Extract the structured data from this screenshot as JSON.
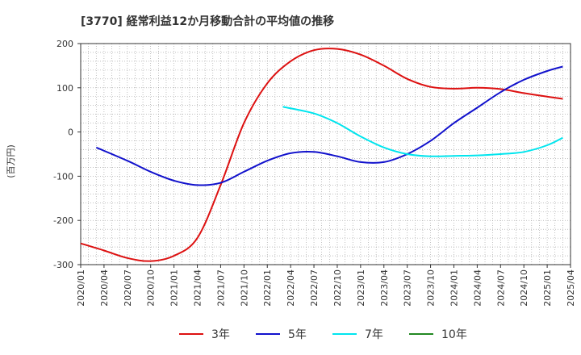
{
  "chart_data": {
    "type": "line",
    "title": "[3770]  経常利益12か月移動合計の平均値の推移",
    "ylabel": "(百万円)",
    "xlabel": "",
    "ylim": [
      -300,
      200
    ],
    "yticks": [
      200,
      100,
      0,
      -100,
      -200,
      -300
    ],
    "grid": true,
    "x_labels": [
      "2020/01",
      "2020/04",
      "2020/07",
      "2020/10",
      "2021/01",
      "2021/04",
      "2021/07",
      "2021/10",
      "2022/01",
      "2022/04",
      "2022/07",
      "2022/10",
      "2023/01",
      "2023/04",
      "2023/07",
      "2023/10",
      "2024/01",
      "2024/04",
      "2024/07",
      "2024/10",
      "2025/01",
      "2025/04"
    ],
    "legend_position": "bottom",
    "series": [
      {
        "name": "3年",
        "color": "#dd1111",
        "points": [
          [
            "2020/01",
            -252
          ],
          [
            "2020/04",
            -268
          ],
          [
            "2020/07",
            -285
          ],
          [
            "2020/10",
            -292
          ],
          [
            "2021/01",
            -280
          ],
          [
            "2021/04",
            -240
          ],
          [
            "2021/07",
            -120
          ],
          [
            "2021/10",
            20
          ],
          [
            "2022/01",
            110
          ],
          [
            "2022/04",
            160
          ],
          [
            "2022/07",
            185
          ],
          [
            "2022/10",
            188
          ],
          [
            "2023/01",
            175
          ],
          [
            "2023/04",
            150
          ],
          [
            "2023/07",
            120
          ],
          [
            "2023/10",
            102
          ],
          [
            "2024/01",
            98
          ],
          [
            "2024/04",
            100
          ],
          [
            "2024/07",
            97
          ],
          [
            "2024/10",
            88
          ],
          [
            "2025/01",
            80
          ],
          [
            "2025/03",
            75
          ]
        ]
      },
      {
        "name": "5年",
        "color": "#1111cc",
        "points": [
          [
            "2020/03",
            -35
          ],
          [
            "2020/07",
            -65
          ],
          [
            "2020/10",
            -90
          ],
          [
            "2021/01",
            -110
          ],
          [
            "2021/04",
            -120
          ],
          [
            "2021/07",
            -115
          ],
          [
            "2021/10",
            -90
          ],
          [
            "2022/01",
            -65
          ],
          [
            "2022/04",
            -48
          ],
          [
            "2022/07",
            -45
          ],
          [
            "2022/10",
            -55
          ],
          [
            "2023/01",
            -68
          ],
          [
            "2023/04",
            -68
          ],
          [
            "2023/07",
            -50
          ],
          [
            "2023/10",
            -20
          ],
          [
            "2024/01",
            20
          ],
          [
            "2024/04",
            55
          ],
          [
            "2024/07",
            90
          ],
          [
            "2024/10",
            118
          ],
          [
            "2025/01",
            138
          ],
          [
            "2025/03",
            148
          ]
        ]
      },
      {
        "name": "7年",
        "color": "#00e5ee",
        "points": [
          [
            "2022/03",
            57
          ],
          [
            "2022/07",
            42
          ],
          [
            "2022/10",
            20
          ],
          [
            "2023/01",
            -10
          ],
          [
            "2023/04",
            -35
          ],
          [
            "2023/07",
            -50
          ],
          [
            "2023/10",
            -55
          ],
          [
            "2024/01",
            -54
          ],
          [
            "2024/04",
            -53
          ],
          [
            "2024/07",
            -50
          ],
          [
            "2024/10",
            -45
          ],
          [
            "2025/01",
            -30
          ],
          [
            "2025/03",
            -13
          ]
        ]
      },
      {
        "name": "10年",
        "color": "#228822",
        "points": []
      }
    ]
  }
}
